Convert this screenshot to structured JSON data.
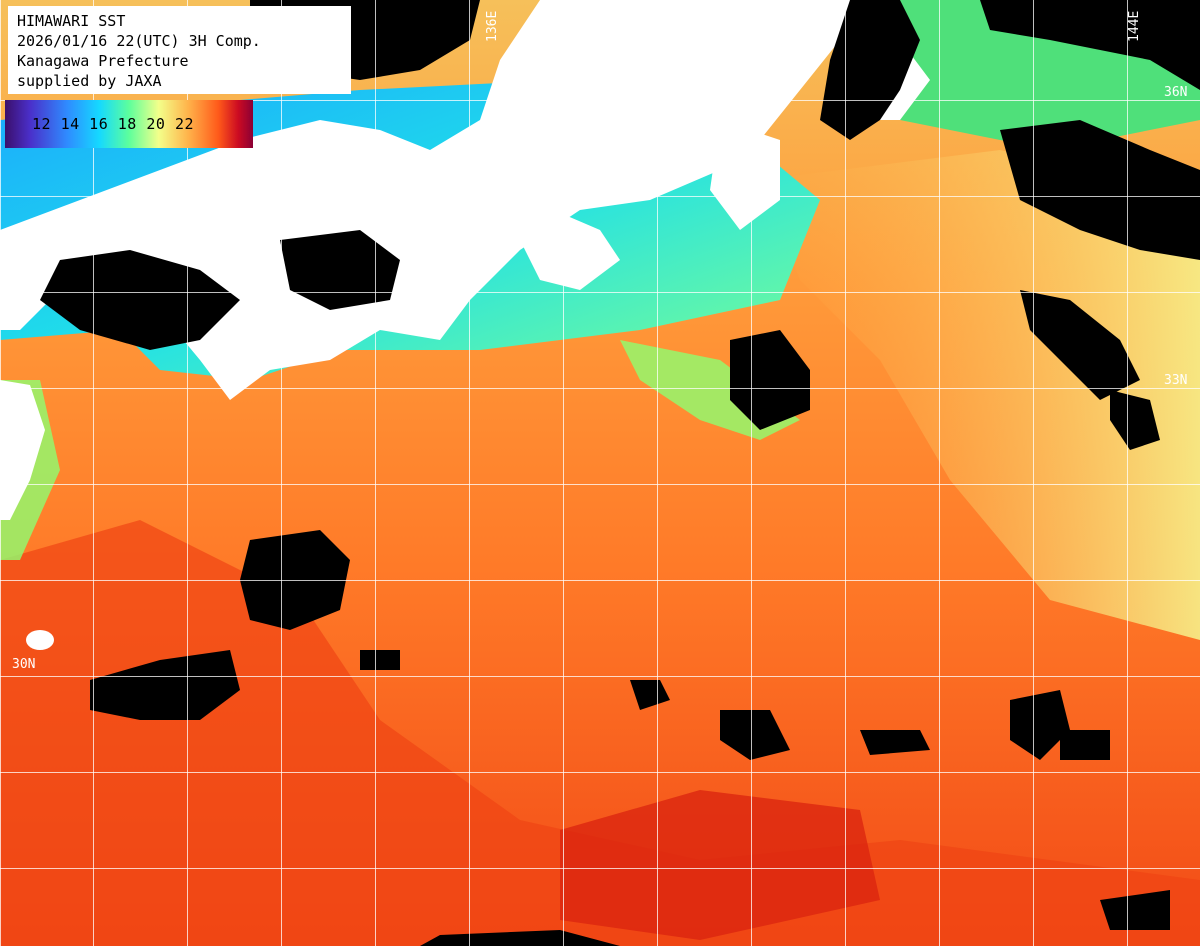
{
  "header": {
    "line1": "HIMAWARI SST",
    "line2": "2026/01/16 22(UTC) 3H Comp.",
    "line3": "Kanagawa Prefecture",
    "line4": "supplied by JAXA"
  },
  "legend": {
    "labels": "12 14 16 18 20 22",
    "ticks": [
      "12",
      "14",
      "16",
      "18",
      "20",
      "22"
    ]
  },
  "grid": {
    "lon_labels": [
      "136E",
      "144E"
    ],
    "lat_labels": [
      "36N",
      "33N",
      "30N"
    ]
  },
  "colors": {
    "land": "#ffffff",
    "cloud": "#000000",
    "grid": "#ffffff",
    "warm": "#ff5a1a",
    "cool": "#15d9ff"
  }
}
